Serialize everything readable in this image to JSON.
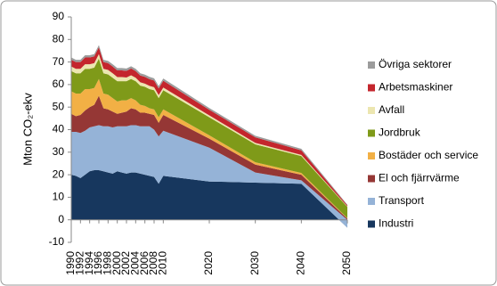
{
  "chart_data": {
    "type": "stacked_area",
    "ylabel": "Mton CO₂-ekv",
    "x": [
      1990,
      1991,
      1992,
      1993,
      1994,
      1995,
      1996,
      1997,
      1998,
      1999,
      2000,
      2001,
      2002,
      2003,
      2004,
      2005,
      2006,
      2007,
      2008,
      2009,
      2010,
      2020,
      2030,
      2040,
      2050
    ],
    "series": [
      {
        "name": "Industri",
        "color": "#17375e",
        "values": [
          20,
          19.5,
          18.5,
          20,
          21.5,
          22,
          22,
          21.5,
          21,
          20.5,
          21.5,
          21,
          20.5,
          21,
          21,
          20.5,
          20,
          19.5,
          19,
          16,
          19.5,
          17,
          16.5,
          16,
          -3.5
        ]
      },
      {
        "name": "Transport",
        "color": "#95b3d7",
        "values": [
          19,
          19.5,
          20,
          19.5,
          19.5,
          19.5,
          20,
          20,
          20.5,
          20.5,
          20,
          20.5,
          21,
          21,
          21,
          21,
          21.5,
          22,
          21,
          21,
          20,
          15,
          4.5,
          1.5,
          3.5
        ]
      },
      {
        "name": "El och fjärrvärme",
        "color": "#953735",
        "values": [
          8,
          7,
          8,
          9,
          9,
          9.5,
          13,
          8,
          7.5,
          7,
          5.5,
          6,
          6.5,
          7.5,
          7,
          6,
          6,
          5.5,
          6.5,
          6,
          7,
          4,
          3.5,
          2.5,
          0.5
        ]
      },
      {
        "name": "Bostäder och service",
        "color": "#f2b045",
        "values": [
          10,
          10,
          9.5,
          9.5,
          8,
          7.5,
          7.5,
          6.5,
          6.5,
          6,
          5.5,
          5.5,
          5,
          4.5,
          4,
          3.5,
          3,
          2.5,
          2.5,
          2.5,
          2.5,
          1.5,
          1,
          0.8,
          0.2
        ]
      },
      {
        "name": "Jordbruk",
        "color": "#7f9a19",
        "values": [
          9,
          9,
          9,
          9,
          9,
          9,
          9,
          9,
          9,
          9,
          9,
          8.5,
          8.5,
          8.5,
          8.5,
          8.5,
          8.5,
          8.5,
          8.5,
          8.5,
          8.5,
          8,
          8,
          7.5,
          5
        ]
      },
      {
        "name": "Avfall",
        "color": "#ece6b0",
        "values": [
          2,
          2,
          2,
          2,
          2,
          2,
          2,
          2,
          2,
          2,
          1.8,
          1.8,
          1.6,
          1.6,
          1.5,
          1.5,
          1.4,
          1.4,
          1.3,
          1.3,
          1.2,
          0.8,
          0.6,
          0.5,
          0.2
        ]
      },
      {
        "name": "Arbetsmaskiner",
        "color": "#c4262d",
        "values": [
          3,
          3,
          3,
          3,
          3,
          3,
          3,
          3,
          3,
          3,
          3,
          3,
          3,
          3,
          3,
          3,
          3,
          3,
          3,
          3,
          3,
          2.5,
          2.5,
          2,
          0.5
        ]
      },
      {
        "name": "Övriga sektorer",
        "color": "#9c9c9c",
        "values": [
          1,
          1,
          1,
          1,
          1,
          1,
          1,
          1,
          1,
          1,
          1,
          1,
          1,
          1,
          1,
          1,
          1,
          1,
          1,
          1,
          1,
          0.8,
          0.7,
          0.7,
          0.3
        ]
      }
    ],
    "xlim": [
      1990,
      2050
    ],
    "xticks": [
      1990,
      1992,
      1994,
      1996,
      1998,
      2000,
      2002,
      2004,
      2006,
      2008,
      2010,
      2020,
      2030,
      2040,
      2050
    ],
    "ylim": [
      -10,
      90
    ],
    "yticks": [
      -10,
      0,
      10,
      20,
      30,
      40,
      50,
      60,
      70,
      80,
      90
    ],
    "grid": false,
    "legend": "right"
  }
}
